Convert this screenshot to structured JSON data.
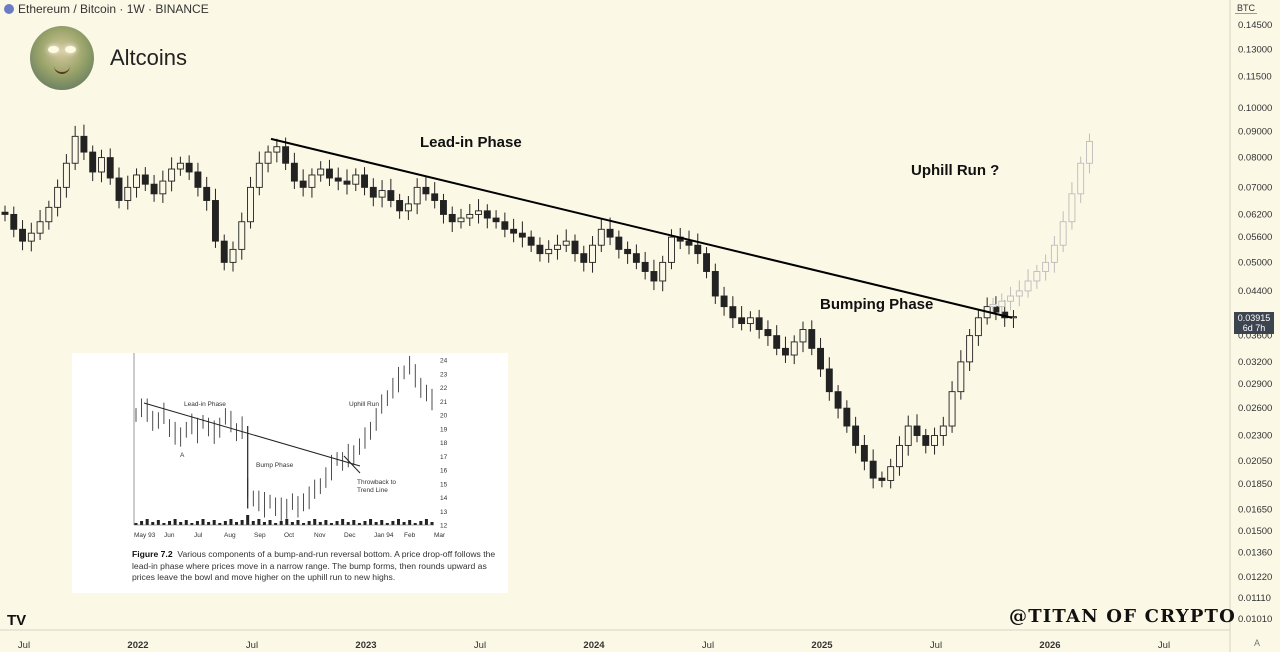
{
  "header": {
    "title": "Ethereum / Bitcoin · 1W · BINANCE"
  },
  "brand": {
    "name": "Altcoins"
  },
  "watermark": "@TITAN OF CRYPTO",
  "currency_label": "BTC",
  "price_badge": {
    "price": "0.03915",
    "countdown": "6d 7h"
  },
  "annotations": {
    "lead_in": "Lead-in Phase",
    "bumping": "Bumping Phase",
    "uphill": "Uphill Run ?"
  },
  "icons": {
    "logo": "tradingview-logo-icon",
    "avatar": "avatar-portrait-icon"
  },
  "colors": {
    "background": "#fbf8e6",
    "candle": "#222222",
    "projection": "#bdbdbd",
    "trendline": "#000000",
    "badge": "#3c4450"
  },
  "chart_data": [
    {
      "type": "candlestick",
      "title": "Ethereum / Bitcoin · 1W · BINANCE",
      "y_scale": "log",
      "y_unit": "BTC",
      "ylim": [
        0.0095,
        0.155
      ],
      "y_ticks": [
        0.145,
        0.13,
        0.115,
        0.1,
        0.09,
        0.08,
        0.07,
        0.062,
        0.056,
        0.05,
        0.044,
        0.036,
        0.032,
        0.029,
        0.026,
        0.023,
        0.0205,
        0.0185,
        0.0165,
        0.015,
        0.0136,
        0.0122,
        0.0111,
        0.0101
      ],
      "x_tick_labels": [
        "Jul",
        "2022",
        "Jul",
        "2023",
        "Jul",
        "2024",
        "Jul",
        "2025",
        "Jul",
        "2026",
        "Jul"
      ],
      "grid": false,
      "series": [
        {
          "start": "2021-06",
          "interval": "1W",
          "close": [
            0.062,
            0.058,
            0.055,
            0.057,
            0.06,
            0.064,
            0.07,
            0.078,
            0.088,
            0.082,
            0.075,
            0.08,
            0.073,
            0.066,
            0.07,
            0.074,
            0.071,
            0.068,
            0.072,
            0.076,
            0.078,
            0.075,
            0.07,
            0.066,
            0.055,
            0.05,
            0.053,
            0.06,
            0.07,
            0.078,
            0.082,
            0.084,
            0.078,
            0.072,
            0.07,
            0.074,
            0.076,
            0.073,
            0.072,
            0.071,
            0.074,
            0.07,
            0.067,
            0.069,
            0.066,
            0.063,
            0.065,
            0.07,
            0.068,
            0.066,
            0.062,
            0.06,
            0.061,
            0.062,
            0.063,
            0.061,
            0.06,
            0.058,
            0.057,
            0.056,
            0.054,
            0.052,
            0.053,
            0.054,
            0.055,
            0.052,
            0.05,
            0.054,
            0.058,
            0.056,
            0.053,
            0.052,
            0.05,
            0.048,
            0.046,
            0.05,
            0.056,
            0.055,
            0.054,
            0.052,
            0.048,
            0.043,
            0.041,
            0.039,
            0.038,
            0.039,
            0.037,
            0.036,
            0.034,
            0.033,
            0.035,
            0.037,
            0.034,
            0.031,
            0.028,
            0.026,
            0.024,
            0.022,
            0.0205,
            0.019,
            0.0188,
            0.02,
            0.022,
            0.024,
            0.023,
            0.022,
            0.023,
            0.024,
            0.028,
            0.032,
            0.036,
            0.039,
            0.041,
            0.04,
            0.039,
            0.0392
          ]
        },
        {
          "name": "",
          "projection": true,
          "start": "2025-10",
          "close": [
            0.041,
            0.042,
            0.043,
            0.044,
            0.046,
            0.048,
            0.05,
            0.054,
            0.06,
            0.068,
            0.078,
            0.086
          ]
        }
      ],
      "trendline": {
        "from": [
          "2022-08",
          0.087
        ],
        "to": [
          "2025-11",
          0.039
        ]
      },
      "annotations": [
        "Lead-in Phase",
        "Bumping Phase",
        "Uphill Run ?"
      ]
    },
    {
      "type": "bar-ohlc",
      "inset": true,
      "caption_title": "Figure 7.2",
      "caption": "Various components of a bump-and-run reversal bottom. A price drop-off follows the lead-in phase where prices move in a narrow range. The bump forms, then rounds upward as prices leave the bowl and move higher on the uphill run to new highs.",
      "x_tick_labels": [
        "May 93",
        "Jun",
        "Jul",
        "Aug",
        "Sep",
        "Oct",
        "Nov",
        "Dec",
        "Jan 94",
        "Feb",
        "Mar"
      ],
      "y_ticks": [
        24,
        23,
        22,
        21,
        20,
        19,
        18,
        17,
        16,
        15,
        14,
        13,
        12
      ],
      "ylim": [
        12,
        24.5
      ],
      "close": [
        20,
        20.5,
        20.3,
        19.8,
        19.5,
        20,
        19.2,
        18.8,
        18.2,
        19,
        19.4,
        18.9,
        19.5,
        19.1,
        18.7,
        19.3,
        19.8,
        19.4,
        18.9,
        19.2,
        14.5,
        14,
        13.8,
        13.5,
        13.7,
        13.3,
        13.1,
        13.4,
        13.6,
        13.2,
        13.8,
        14.1,
        14.4,
        14.9,
        15.5,
        16.2,
        16.8,
        16.6,
        17,
        17.3,
        17.6,
        18.2,
        19,
        19.8,
        20.6,
        21.3,
        22,
        22.6,
        23.1,
        23.6,
        22.8,
        22.2,
        21.5,
        21
      ],
      "annotations": [
        "Lead-in Phase",
        "A",
        "Bump Phase",
        "Uphill Run",
        "Throwback to",
        "Trend Line"
      ]
    }
  ]
}
